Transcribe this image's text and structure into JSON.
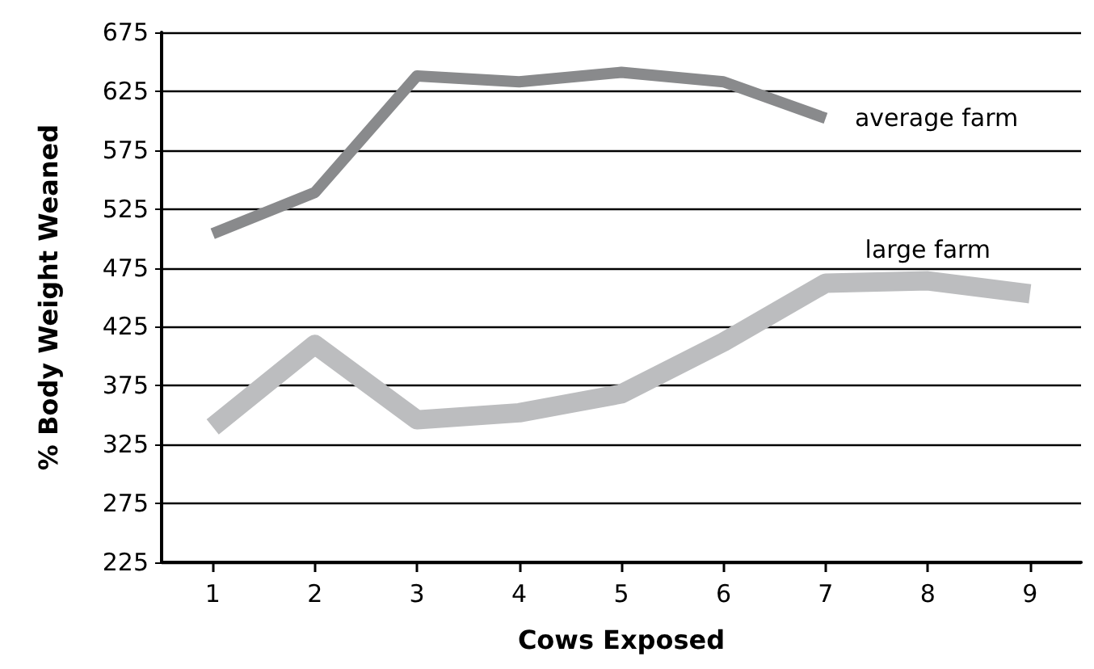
{
  "chart_data": {
    "type": "line",
    "xlabel": "Cows Exposed",
    "ylabel": "% Body Weight Weaned",
    "categories": [
      "1",
      "2",
      "3",
      "4",
      "5",
      "6",
      "7",
      "8",
      "9"
    ],
    "series": [
      {
        "name": "average farm",
        "color": "#898a8c",
        "values": [
          504,
          539,
          638,
          633,
          641,
          633,
          602,
          null,
          null
        ]
      },
      {
        "name": "large farm",
        "color": "#bcbdbf",
        "values": [
          340,
          410,
          346,
          352,
          368,
          412,
          462,
          464,
          453
        ]
      }
    ],
    "ylim": [
      225,
      675
    ],
    "yticks": [
      225,
      275,
      325,
      375,
      425,
      475,
      525,
      575,
      625,
      675
    ],
    "grid": "y",
    "legend": false,
    "marker": "none",
    "line_style": "solid"
  }
}
